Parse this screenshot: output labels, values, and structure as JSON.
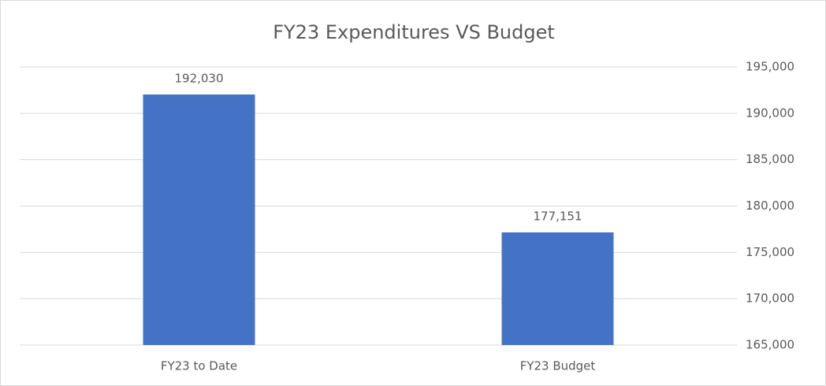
{
  "chart_data": {
    "type": "bar",
    "title": "FY23 Expenditures VS Budget",
    "categories": [
      "FY23 to Date",
      "FY23 Budget"
    ],
    "values": [
      192030,
      177151
    ],
    "value_labels": [
      "192,030",
      "177,151"
    ],
    "color": "#4472c4",
    "ylim": [
      165000,
      195000
    ],
    "yticks": [
      {
        "value": 165000,
        "label": "165,000"
      },
      {
        "value": 170000,
        "label": "170,000"
      },
      {
        "value": 175000,
        "label": "175,000"
      },
      {
        "value": 180000,
        "label": "180,000"
      },
      {
        "value": 185000,
        "label": "185,000"
      },
      {
        "value": 190000,
        "label": "190,000"
      },
      {
        "value": 195000,
        "label": "195,000"
      }
    ],
    "y_axis_position": "right",
    "grid": true
  }
}
